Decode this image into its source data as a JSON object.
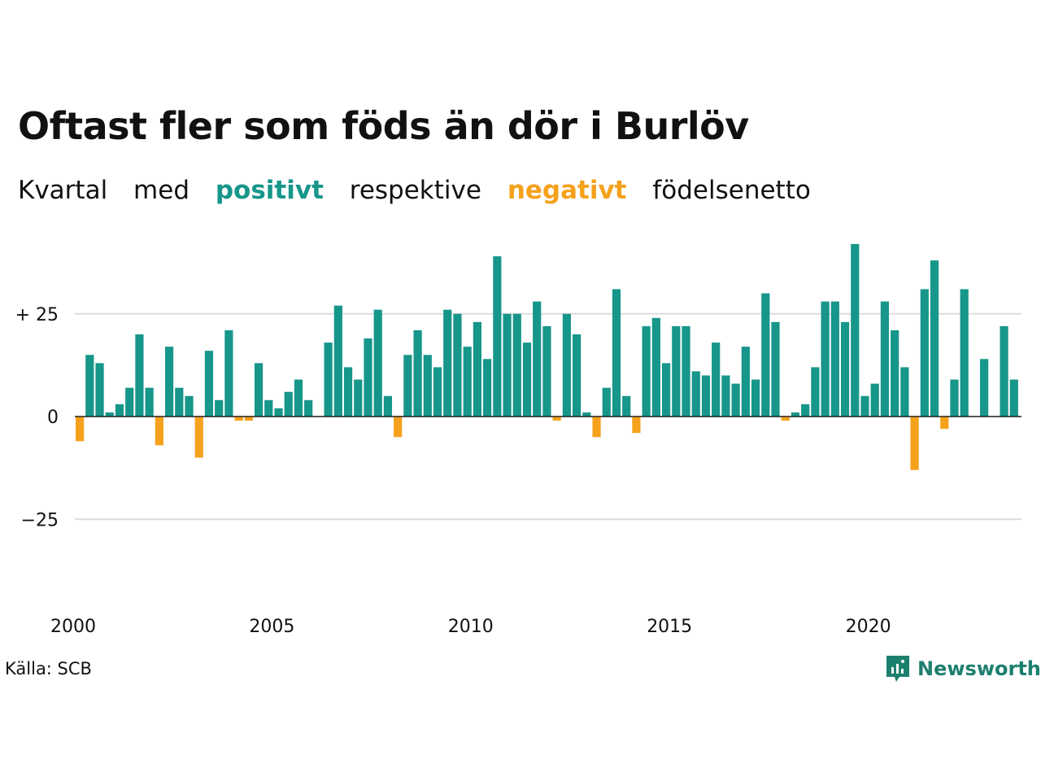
{
  "title": "Oftast fler som föds än dör i Burlöv",
  "subtitle": {
    "w1": "Kvartal",
    "w2": "med",
    "positive": "positivt",
    "w3": "respektive",
    "negative": "negativt",
    "w4": "födelsenetto"
  },
  "source": "Källa: SCB",
  "brand": {
    "name": "Newsworthy",
    "icon": "newsworthy-logo-icon"
  },
  "colors": {
    "positive": "#17968a",
    "negative": "#f5a11c",
    "grid": "#dddddd",
    "text": "#111111",
    "brand": "#1d7f6e"
  },
  "chart_data": {
    "type": "bar",
    "x_start": "2000 Q1",
    "x_ticks": [
      "2000",
      "2005",
      "2010",
      "2015",
      "2020"
    ],
    "y_ticks": [
      25,
      0,
      -25
    ],
    "y_tick_labels": [
      "+ 25",
      "0",
      "−25"
    ],
    "ylim": [
      -45,
      43
    ],
    "grid": true,
    "values": [
      -6,
      15,
      13,
      1,
      3,
      7,
      20,
      7,
      -7,
      17,
      7,
      5,
      -10,
      16,
      4,
      21,
      -1,
      -1,
      13,
      4,
      2,
      6,
      9,
      4,
      0,
      18,
      27,
      12,
      9,
      19,
      26,
      5,
      -5,
      15,
      21,
      15,
      12,
      26,
      25,
      17,
      23,
      14,
      39,
      25,
      25,
      18,
      28,
      22,
      -1,
      25,
      20,
      1,
      -5,
      7,
      31,
      5,
      -4,
      22,
      24,
      13,
      22,
      22,
      11,
      10,
      18,
      10,
      8,
      17,
      9,
      30,
      23,
      -1,
      1,
      3,
      12,
      28,
      28,
      23,
      42,
      5,
      8,
      28,
      21,
      12,
      -13,
      31,
      38,
      -3,
      9,
      31,
      0,
      14,
      0,
      22,
      9
    ]
  }
}
